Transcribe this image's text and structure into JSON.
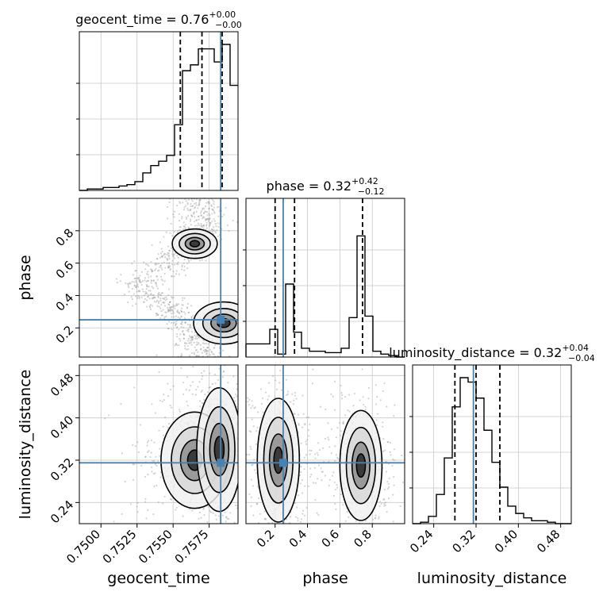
{
  "chart_data": {
    "type": "corner",
    "parameters": [
      "geocent_time",
      "phase",
      "luminosity_distance"
    ],
    "titles": [
      {
        "prefix": "geocent_time = 0.76",
        "sup": "+0.00",
        "sub": "−0.00"
      },
      {
        "prefix": "phase = 0.32",
        "sup": "+0.42",
        "sub": "−0.12"
      },
      {
        "prefix": "luminosity_distance = 0.32",
        "sup": "+0.04",
        "sub": "−0.04"
      }
    ],
    "axis_labels": {
      "x": [
        "geocent_time",
        "phase",
        "luminosity_distance"
      ],
      "y": [
        "phase",
        "luminosity_distance"
      ]
    },
    "ranges": {
      "geocent_time": [
        0.7485,
        0.7595
      ],
      "phase": [
        0.02,
        1.0
      ],
      "luminosity_distance": [
        0.2,
        0.5
      ]
    },
    "ticks": {
      "geocent_time": [
        {
          "v": 0.75,
          "label": "0.7500"
        },
        {
          "v": 0.7525,
          "label": "0.7525"
        },
        {
          "v": 0.755,
          "label": "0.7550"
        },
        {
          "v": 0.7575,
          "label": "0.7575"
        }
      ],
      "phase": [
        {
          "v": 0.2,
          "label": "0.2"
        },
        {
          "v": 0.4,
          "label": "0.4"
        },
        {
          "v": 0.6,
          "label": "0.6"
        },
        {
          "v": 0.8,
          "label": "0.8"
        }
      ],
      "luminosity_distance": [
        {
          "v": 0.24,
          "label": "0.24"
        },
        {
          "v": 0.32,
          "label": "0.32"
        },
        {
          "v": 0.4,
          "label": "0.40"
        },
        {
          "v": 0.48,
          "label": "0.48"
        }
      ]
    },
    "truths": {
      "geocent_time": 0.7583,
      "phase": 0.25,
      "luminosity_distance": 0.315
    },
    "quantiles": {
      "geocent_time": [
        0.7555,
        0.757,
        0.7584
      ],
      "phase": [
        0.2,
        0.32,
        0.74
      ],
      "luminosity_distance": [
        0.28,
        0.32,
        0.365
      ]
    },
    "histograms": {
      "geocent_time": {
        "bin_width": 0.00055,
        "start": 0.7485,
        "counts": [
          0.0,
          0.01,
          0.01,
          0.02,
          0.02,
          0.03,
          0.04,
          0.06,
          0.12,
          0.17,
          0.2,
          0.24,
          0.45,
          0.82,
          0.86,
          0.97,
          0.97,
          0.88,
          1.0,
          0.72
        ]
      },
      "phase": {
        "bin_width": 0.049,
        "start": 0.02,
        "counts": [
          0.09,
          0.09,
          0.09,
          0.19,
          0.02,
          0.5,
          0.17,
          0.06,
          0.04,
          0.04,
          0.03,
          0.03,
          0.06,
          0.27,
          0.83,
          0.28,
          0.04,
          0.02,
          0.01,
          0.0
        ]
      },
      "luminosity_distance": {
        "bin_width": 0.015,
        "start": 0.2,
        "counts": [
          0.0,
          0.01,
          0.05,
          0.2,
          0.45,
          0.8,
          1.0,
          0.97,
          0.86,
          0.64,
          0.42,
          0.25,
          0.12,
          0.07,
          0.04,
          0.02,
          0.02,
          0.01,
          0.0,
          0.0
        ]
      }
    },
    "density_blobs": [
      {
        "pair": [
          "geocent_time",
          "phase"
        ],
        "centers": [
          {
            "x": 0.7565,
            "y": 0.72,
            "sx": 0.0006,
            "sy": 0.035
          },
          {
            "x": 0.7585,
            "y": 0.23,
            "sx": 0.0008,
            "sy": 0.05
          }
        ]
      },
      {
        "pair": [
          "geocent_time",
          "luminosity_distance"
        ],
        "centers": [
          {
            "x": 0.7565,
            "y": 0.32,
            "sx": 0.0009,
            "sy": 0.035
          },
          {
            "x": 0.7582,
            "y": 0.34,
            "sx": 0.0006,
            "sy": 0.045
          }
        ]
      },
      {
        "pair": [
          "phase",
          "luminosity_distance"
        ],
        "centers": [
          {
            "x": 0.22,
            "y": 0.32,
            "sx": 0.05,
            "sy": 0.045
          },
          {
            "x": 0.73,
            "y": 0.31,
            "sx": 0.05,
            "sy": 0.04
          }
        ]
      }
    ],
    "grid": true,
    "colors": {
      "truth": "#4682b4",
      "hist": "#000000",
      "scatter": "#9e9e9e",
      "contour": "#000000"
    }
  }
}
